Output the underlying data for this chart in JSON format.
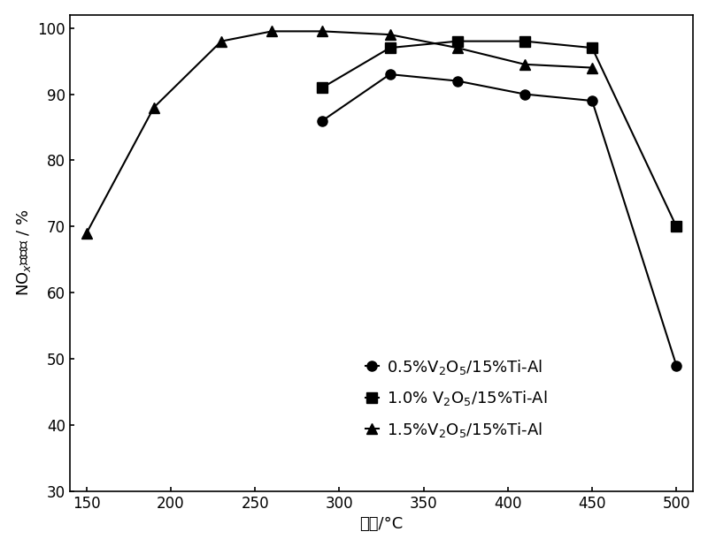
{
  "series": [
    {
      "label": "0.5%V$_2$O$_5$/15%Ti-Al",
      "x": [
        290,
        330,
        370,
        410,
        450,
        500
      ],
      "y": [
        86,
        93,
        92,
        90,
        89,
        49
      ],
      "marker": "o",
      "color": "#000000"
    },
    {
      "label": "1.0% V$_2$O$_5$/15%Ti-Al",
      "x": [
        290,
        330,
        370,
        410,
        450,
        500
      ],
      "y": [
        91,
        97,
        98,
        98,
        97,
        70
      ],
      "marker": "s",
      "color": "#000000"
    },
    {
      "label": "1.5%V$_2$O$_5$/15%Ti-Al",
      "x": [
        150,
        190,
        230,
        260,
        290,
        330,
        370,
        410,
        450
      ],
      "y": [
        69,
        88,
        98,
        99.5,
        99.5,
        99,
        97,
        94.5,
        94
      ],
      "marker": "^",
      "color": "#000000"
    }
  ],
  "xlabel": "温度/°C",
  "ylabel": "NO$_x$去除率 / %",
  "xlim": [
    140,
    510
  ],
  "ylim": [
    30,
    102
  ],
  "xticks": [
    150,
    200,
    250,
    300,
    350,
    400,
    450,
    500
  ],
  "yticks": [
    30,
    40,
    50,
    60,
    70,
    80,
    90,
    100
  ],
  "figsize": [
    8.0,
    6.19
  ],
  "dpi": 100,
  "background_color": "#ffffff"
}
